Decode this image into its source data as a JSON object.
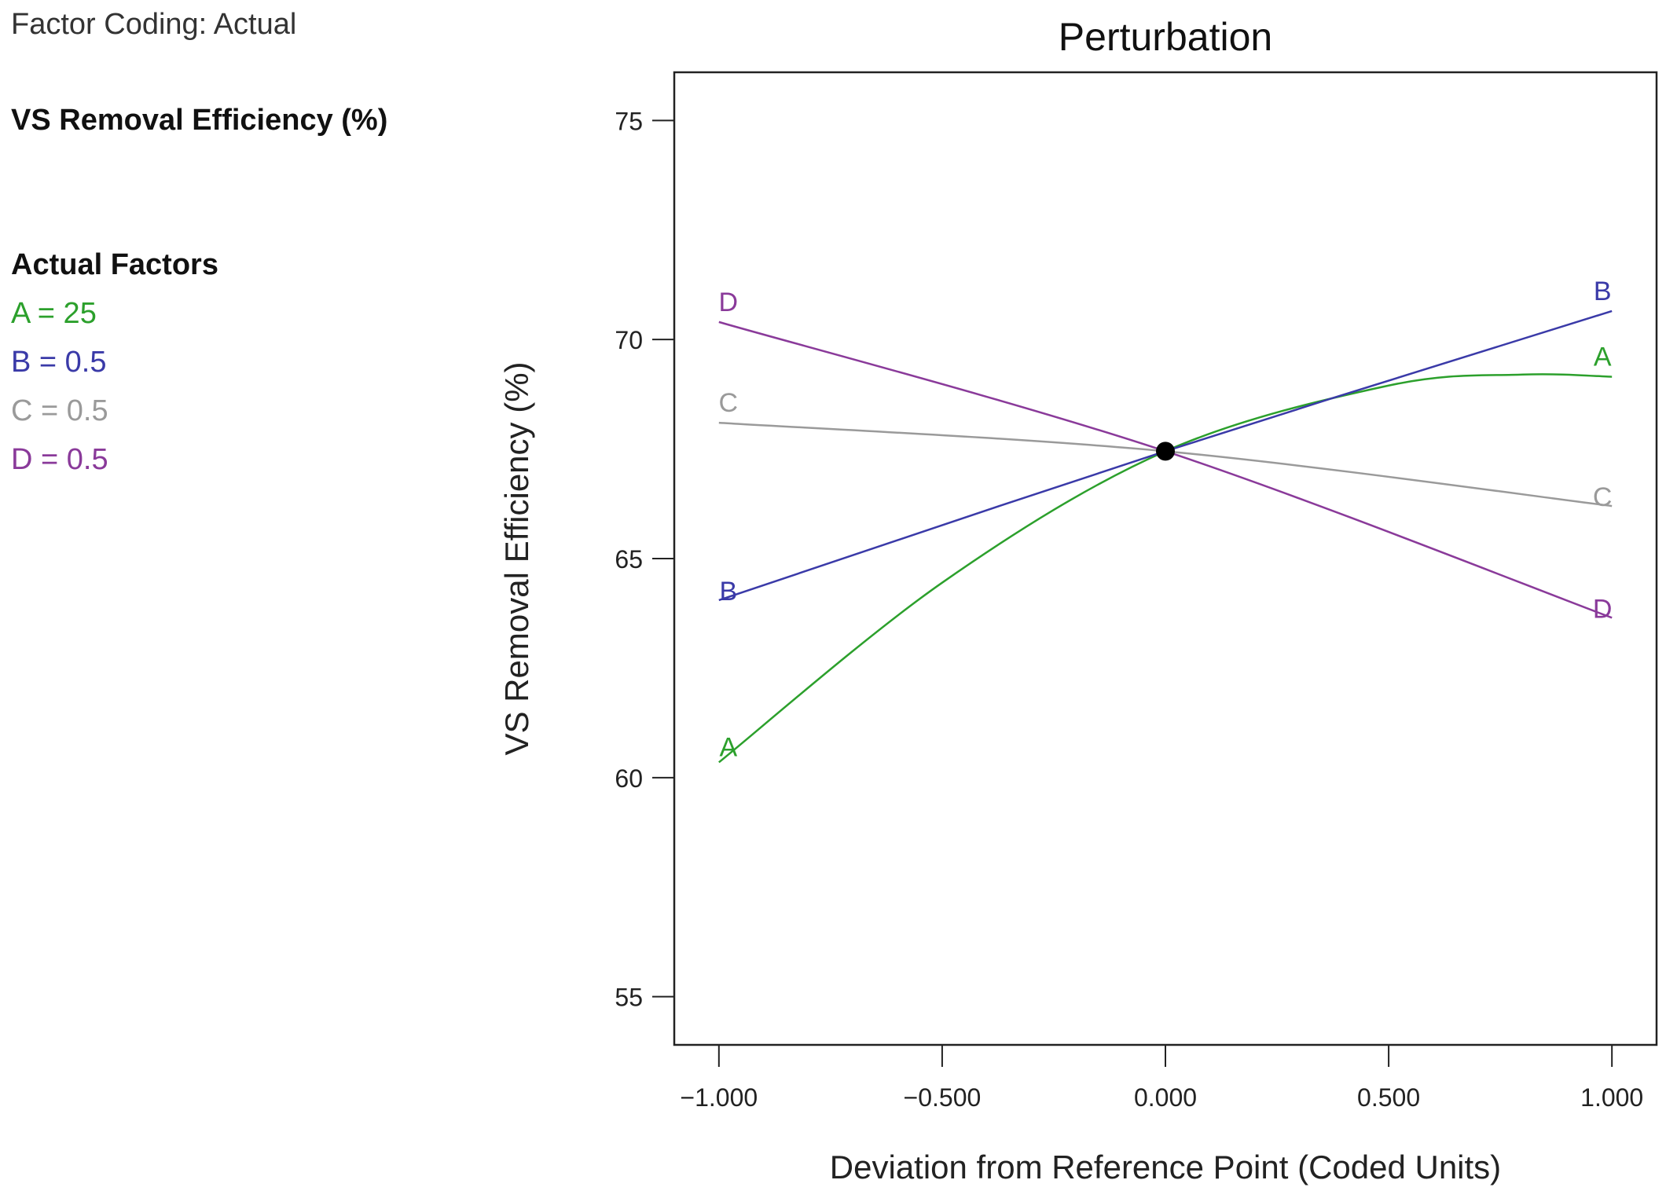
{
  "panel": {
    "factor_coding": "Factor Coding: Actual",
    "response": "VS Removal Efficiency (%)",
    "actual_factors_title": "Actual Factors",
    "factors": [
      {
        "label": "A = 25",
        "color": "#2ca02c"
      },
      {
        "label": "B = 0.5",
        "color": "#3a3aa8"
      },
      {
        "label": "C = 0.5",
        "color": "#9a9a9a"
      },
      {
        "label": "D = 0.5",
        "color": "#8a3a9a"
      }
    ]
  },
  "chart_data": {
    "type": "line",
    "title": "Perturbation",
    "xlabel": "Deviation from Reference Point (Coded Units)",
    "ylabel": "VS Removal Efficiency (%)",
    "xlim": [
      -1.1,
      1.1
    ],
    "ylim": [
      53.9,
      76.1
    ],
    "xticks": [
      -1.0,
      -0.5,
      0.0,
      0.5,
      1.0
    ],
    "xtick_labels": [
      "−1.000",
      "−0.500",
      "0.000",
      "0.500",
      "1.000"
    ],
    "yticks": [
      55,
      60,
      65,
      70,
      75
    ],
    "ytick_labels": [
      "55",
      "60",
      "65",
      "70",
      "75"
    ],
    "reference_point": {
      "x": 0.0,
      "y": 67.45
    },
    "series": [
      {
        "name": "A",
        "color": "#2ca02c",
        "x": [
          -1.0,
          -0.5,
          0.0,
          0.5,
          0.8,
          1.0
        ],
        "y": [
          60.35,
          64.45,
          67.45,
          68.95,
          69.2,
          69.15
        ]
      },
      {
        "name": "B",
        "color": "#3a3aa8",
        "x": [
          -1.0,
          0.0,
          1.0
        ],
        "y": [
          64.05,
          67.45,
          70.65
        ]
      },
      {
        "name": "C",
        "color": "#9a9a9a",
        "x": [
          -1.0,
          0.0,
          1.0
        ],
        "y": [
          68.1,
          67.45,
          66.2
        ]
      },
      {
        "name": "D",
        "color": "#8a3a9a",
        "x": [
          -1.0,
          0.0,
          1.0
        ],
        "y": [
          70.4,
          67.45,
          63.65
        ]
      }
    ]
  }
}
